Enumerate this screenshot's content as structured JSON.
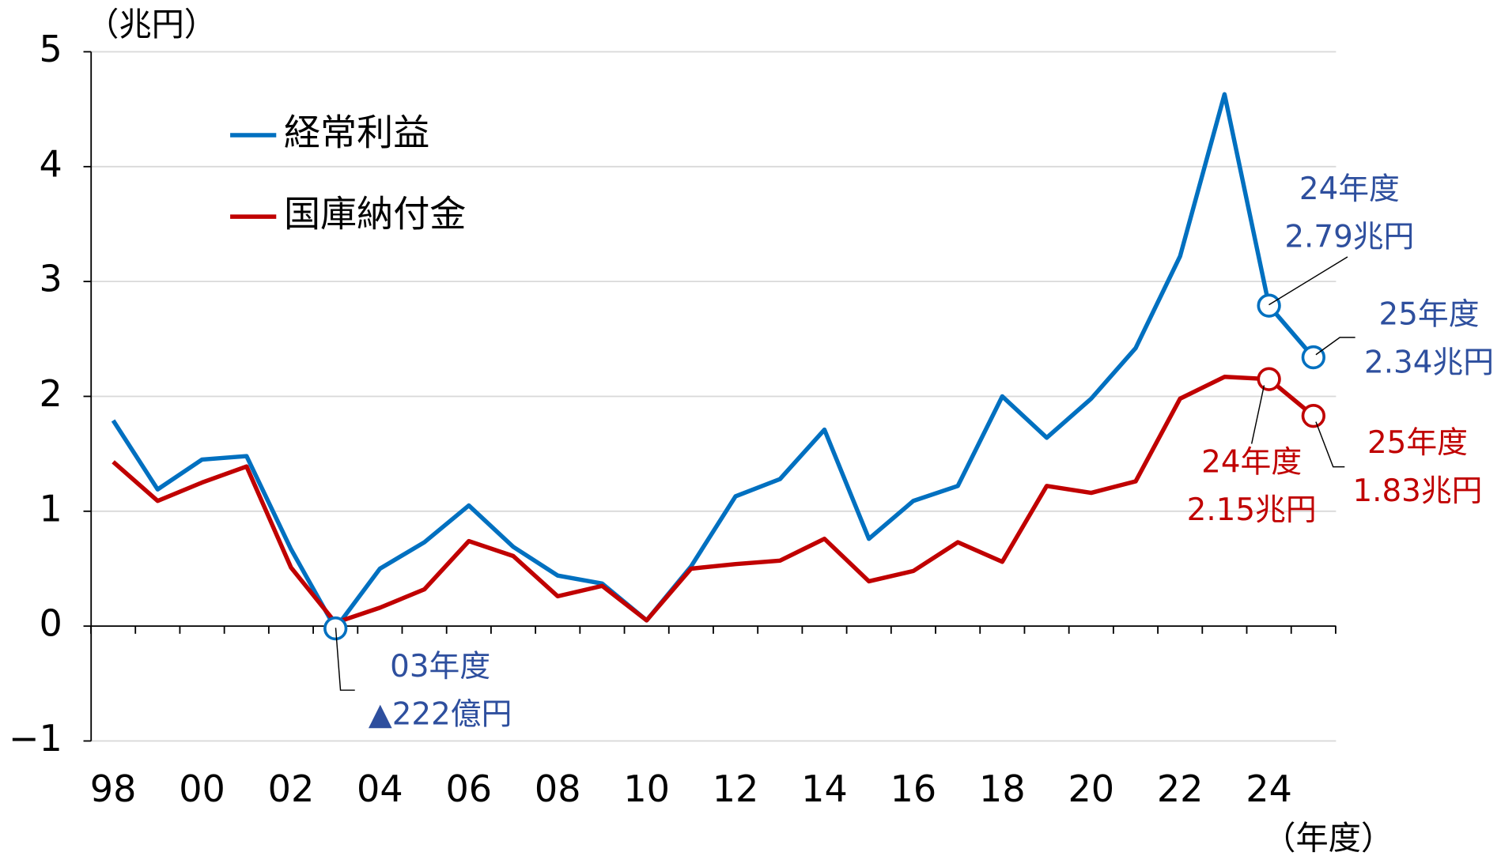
{
  "chart_data": {
    "type": "line",
    "y_unit_label": "（兆円）",
    "x_unit_label": "（年度）",
    "categories": [
      "98",
      null,
      "00",
      null,
      "02",
      null,
      "04",
      null,
      "06",
      null,
      "08",
      null,
      "10",
      null,
      "12",
      null,
      "14",
      null,
      "16",
      null,
      "18",
      null,
      "20",
      null,
      "22",
      null,
      "24",
      null
    ],
    "series": [
      {
        "name": "経常利益",
        "color": "#0070c0",
        "markers": [
          5,
          26,
          27
        ],
        "values": [
          1.79,
          1.19,
          1.45,
          1.48,
          0.67,
          -0.02,
          0.5,
          0.73,
          1.05,
          0.69,
          0.44,
          0.37,
          0.05,
          0.52,
          1.13,
          1.28,
          1.71,
          0.76,
          1.09,
          1.22,
          2.0,
          1.64,
          1.98,
          2.42,
          3.22,
          4.63,
          2.79,
          2.34
        ]
      },
      {
        "name": "国庫納付金",
        "color": "#c00000",
        "markers": [
          26,
          27
        ],
        "values": [
          1.43,
          1.09,
          1.25,
          1.39,
          0.51,
          0.03,
          0.16,
          0.32,
          0.74,
          0.61,
          0.26,
          0.35,
          0.05,
          0.5,
          0.54,
          0.57,
          0.76,
          0.39,
          0.48,
          0.73,
          0.56,
          1.22,
          1.16,
          1.26,
          1.98,
          2.17,
          2.15,
          1.83
        ]
      }
    ],
    "ylim": [
      -1,
      5
    ],
    "yticks": [
      {
        "value": -1,
        "label": "−1"
      },
      0,
      1,
      2,
      3,
      4,
      5
    ],
    "grid": true,
    "legend": "upper left",
    "annotations": [
      {
        "lines": [
          "03年度",
          "▲222億円"
        ],
        "color": "#2e4f9e"
      },
      {
        "lines": [
          "24年度",
          "2.79兆円"
        ],
        "color": "#2e4f9e"
      },
      {
        "lines": [
          "25年度",
          "2.34兆円"
        ],
        "color": "#2e4f9e"
      },
      {
        "lines": [
          "24年度",
          "2.15兆円"
        ],
        "color": "#c00000"
      },
      {
        "lines": [
          "25年度",
          "1.83兆円"
        ],
        "color": "#c00000"
      }
    ]
  }
}
